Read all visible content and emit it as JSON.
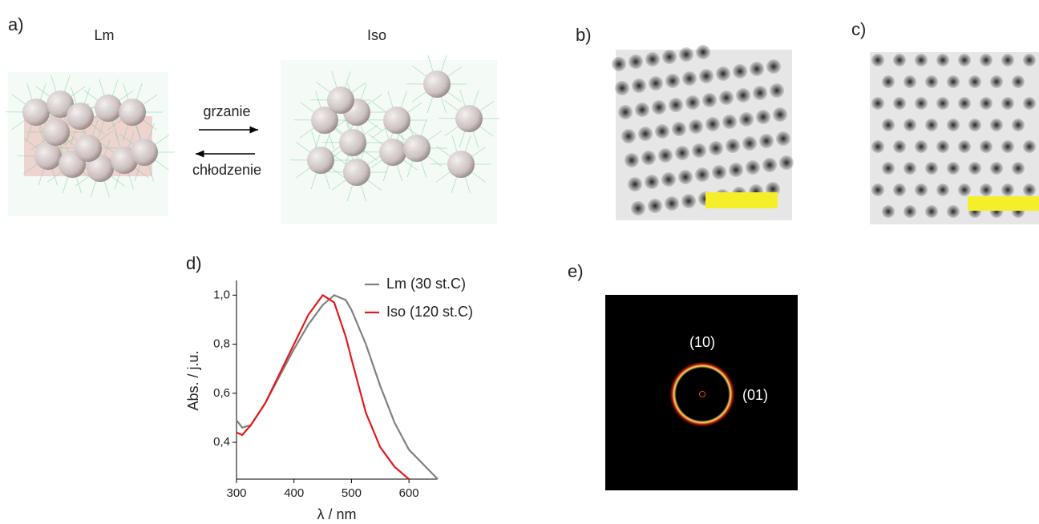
{
  "panels": {
    "a": {
      "label": "a)",
      "left": "Lm",
      "right": "Iso",
      "heating": "grzanie",
      "cooling": "chłodzenie"
    },
    "b": {
      "label": "b)"
    },
    "c": {
      "label": "c)"
    },
    "d": {
      "label": "d)"
    },
    "e": {
      "label": "e)",
      "ring_inner": "(10)",
      "ring_outer": "(01)"
    }
  },
  "chart_data": {
    "type": "line",
    "x_label": "λ / nm",
    "y_label": "Abs. / j.u.",
    "x": [
      300,
      310,
      325,
      350,
      375,
      400,
      425,
      450,
      470,
      490,
      500,
      525,
      550,
      575,
      600,
      625,
      650
    ],
    "series": [
      {
        "name": "Lm (30 st.C)",
        "color": "#808080",
        "values": [
          0.49,
          0.46,
          0.47,
          0.56,
          0.67,
          0.78,
          0.88,
          0.96,
          1.0,
          0.98,
          0.94,
          0.8,
          0.63,
          0.48,
          0.37,
          0.31,
          0.25
        ]
      },
      {
        "name": "Iso (120 st.C)",
        "color": "#e41a1c",
        "values": [
          0.44,
          0.43,
          0.47,
          0.56,
          0.68,
          0.8,
          0.92,
          1.0,
          0.97,
          0.83,
          0.74,
          0.52,
          0.38,
          0.3,
          0.25,
          null,
          null
        ]
      }
    ],
    "xlim": [
      300,
      650
    ],
    "ylim": [
      0.25,
      1.06
    ],
    "xticks": [
      300,
      400,
      500,
      600
    ],
    "yticks": [
      {
        "value": 0.4,
        "label": "0,4"
      },
      {
        "value": 0.6,
        "label": "0,6"
      },
      {
        "value": 0.8,
        "label": "0,8"
      },
      {
        "value": 1.0,
        "label": "1,0"
      }
    ]
  }
}
